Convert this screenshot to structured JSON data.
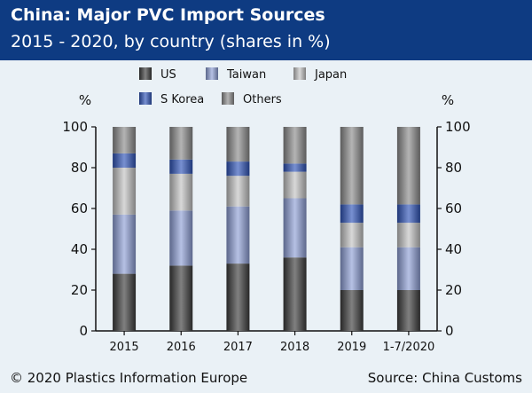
{
  "header": {
    "title": "China: Major PVC Import Sources",
    "subtitle": "2015 - 2020, by country (shares in %)"
  },
  "footer": {
    "copyright": "© 2020 Plastics Information Europe",
    "source": "Source: China Customs"
  },
  "colors": {
    "header_bg": "#0e3b82",
    "page_bg": "#eaf1f6"
  },
  "chart_data": {
    "type": "bar",
    "stacked": true,
    "categories": [
      "2015",
      "2016",
      "2017",
      "2018",
      "2019",
      "1-7/2020"
    ],
    "series": [
      {
        "name": "US",
        "values": [
          28,
          32,
          33,
          36,
          20,
          20
        ],
        "color": "#3c3c3c"
      },
      {
        "name": "Taiwan",
        "values": [
          29,
          27,
          28,
          29,
          21,
          21
        ],
        "color": "#8e9fd6"
      },
      {
        "name": "Japan",
        "values": [
          23,
          18,
          15,
          13,
          12,
          12
        ],
        "color": "#c3c3c3"
      },
      {
        "name": "S Korea",
        "values": [
          7,
          7,
          7,
          4,
          9,
          9
        ],
        "color": "#2f54b8"
      },
      {
        "name": "Others",
        "values": [
          13,
          16,
          17,
          18,
          38,
          38
        ],
        "color": "#8c8c8c"
      }
    ],
    "ylabel_left": "%",
    "ylabel_right": "%",
    "ylim": [
      0,
      100
    ],
    "yticks": [
      0,
      20,
      40,
      60,
      80,
      100
    ],
    "legend_position": "top",
    "grid": false
  }
}
